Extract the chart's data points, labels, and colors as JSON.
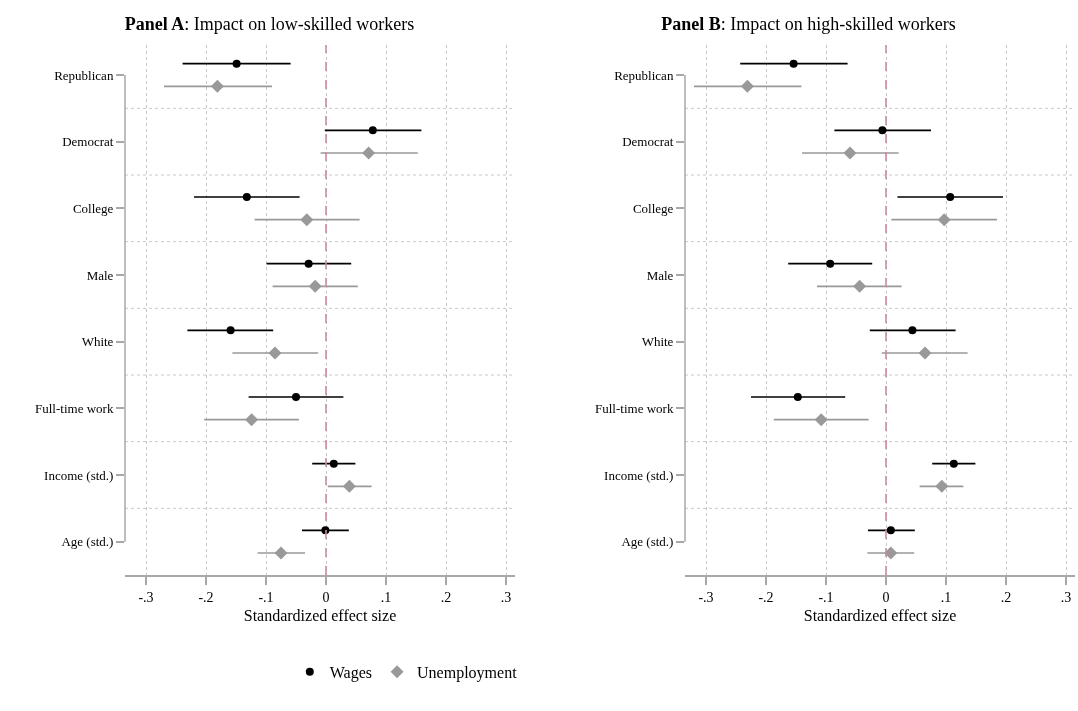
{
  "chart_data": [
    {
      "type": "scatter",
      "orientation": "horizontal",
      "title": "Panel A: Impact on low-skilled workers",
      "xlabel": "Standardized effect size",
      "categories": [
        "Republican",
        "Democrat",
        "College",
        "Male",
        "White",
        "Full-time work",
        "Income (std.)",
        "Age (std.)"
      ],
      "xlim": [
        -0.335,
        0.315
      ],
      "xticks": [
        {
          "value": -0.3,
          "label": "-.3"
        },
        {
          "value": -0.2,
          "label": "-.2"
        },
        {
          "value": -0.1,
          "label": "-.1"
        },
        0,
        {
          "value": 0.1,
          "label": ".1"
        },
        {
          "value": 0.2,
          "label": ".2"
        },
        {
          "value": 0.3,
          "label": ".3"
        }
      ],
      "grid": true,
      "legend": "bottom",
      "ref_lines": [
        {
          "axis": "x",
          "value": 0,
          "color": "#c98aa8",
          "line_style": "dashed"
        }
      ],
      "series": [
        {
          "name": "Wages",
          "color": "#000000",
          "marker": "circle",
          "values": [
            -0.149,
            0.078,
            -0.132,
            -0.029,
            -0.159,
            -0.05,
            0.013,
            -0.001
          ],
          "errors": [
            [
              -0.239,
              -0.059
            ],
            [
              -0.002,
              0.159
            ],
            [
              -0.22,
              -0.044
            ],
            [
              -0.099,
              0.042
            ],
            [
              -0.231,
              -0.088
            ],
            [
              -0.129,
              0.029
            ],
            [
              -0.023,
              0.049
            ],
            [
              -0.04,
              0.038
            ]
          ]
        },
        {
          "name": "Unemployment",
          "color": "#999999",
          "marker": "diamond",
          "values": [
            -0.181,
            0.071,
            -0.032,
            -0.018,
            -0.085,
            -0.124,
            0.039,
            -0.075
          ],
          "errors": [
            [
              -0.27,
              -0.09
            ],
            [
              -0.009,
              0.153
            ],
            [
              -0.119,
              0.056
            ],
            [
              -0.089,
              0.053
            ],
            [
              -0.156,
              -0.013
            ],
            [
              -0.203,
              -0.045
            ],
            [
              0.003,
              0.076
            ],
            [
              -0.114,
              -0.035
            ]
          ]
        }
      ]
    },
    {
      "type": "scatter",
      "orientation": "horizontal",
      "title": "Panel B: Impact on high-skilled workers",
      "xlabel": "Standardized effect size",
      "categories": [
        "Republican",
        "Democrat",
        "College",
        "Male",
        "White",
        "Full-time work",
        "Income (std.)",
        "Age (std.)"
      ],
      "xlim": [
        -0.335,
        0.315
      ],
      "xticks": [
        {
          "value": -0.3,
          "label": "-.3"
        },
        {
          "value": -0.2,
          "label": "-.2"
        },
        {
          "value": -0.1,
          "label": "-.1"
        },
        0,
        {
          "value": 0.1,
          "label": ".1"
        },
        {
          "value": 0.2,
          "label": ".2"
        },
        {
          "value": 0.3,
          "label": ".3"
        }
      ],
      "grid": true,
      "legend": false,
      "ref_lines": [
        {
          "axis": "x",
          "value": 0,
          "color": "#c98aa8",
          "line_style": "dashed"
        }
      ],
      "series": [
        {
          "color": "#000000",
          "marker": "circle",
          "values": [
            -0.154,
            -0.006,
            0.107,
            -0.093,
            0.044,
            -0.147,
            0.113,
            0.008
          ],
          "errors": [
            [
              -0.243,
              -0.064
            ],
            [
              -0.086,
              0.075
            ],
            [
              0.019,
              0.195
            ],
            [
              -0.163,
              -0.023
            ],
            [
              -0.027,
              0.116
            ],
            [
              -0.225,
              -0.068
            ],
            [
              0.077,
              0.149
            ],
            [
              -0.03,
              0.048
            ]
          ]
        },
        {
          "color": "#999999",
          "marker": "diamond",
          "values": [
            -0.231,
            -0.06,
            0.097,
            -0.044,
            0.065,
            -0.108,
            0.093,
            0.008
          ],
          "errors": [
            [
              -0.32,
              -0.141
            ],
            [
              -0.14,
              0.021
            ],
            [
              0.009,
              0.185
            ],
            [
              -0.115,
              0.026
            ],
            [
              -0.007,
              0.136
            ],
            [
              -0.187,
              -0.029
            ],
            [
              0.056,
              0.129
            ],
            [
              -0.031,
              0.047
            ]
          ]
        }
      ]
    }
  ]
}
